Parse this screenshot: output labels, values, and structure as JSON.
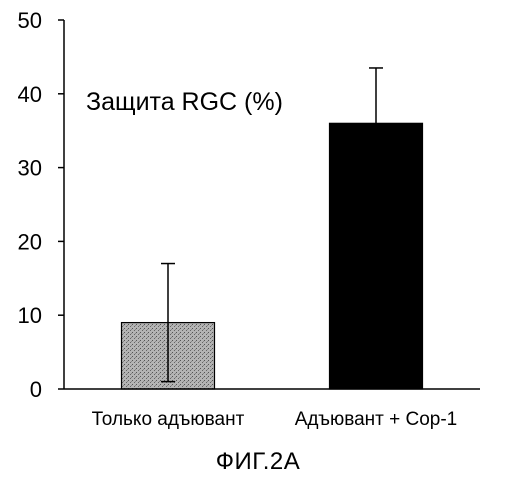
{
  "chart_data": {
    "type": "bar",
    "title": "",
    "xlabel": "",
    "ylabel": "",
    "annotation": "Защита RGC (%)",
    "categories": [
      "Только адъювант",
      "Адъювант + Cop-1"
    ],
    "values": [
      9,
      36
    ],
    "error_upper": [
      17,
      43.5
    ],
    "error_lower": [
      1,
      36
    ],
    "ylim": [
      0,
      50
    ],
    "yticks": [
      "0",
      "10",
      "20",
      "30",
      "40",
      "50"
    ],
    "bar_colors": [
      "#9a9a9a",
      "#000000"
    ],
    "grid": false,
    "legend": false
  },
  "caption": "ФИГ.2А"
}
